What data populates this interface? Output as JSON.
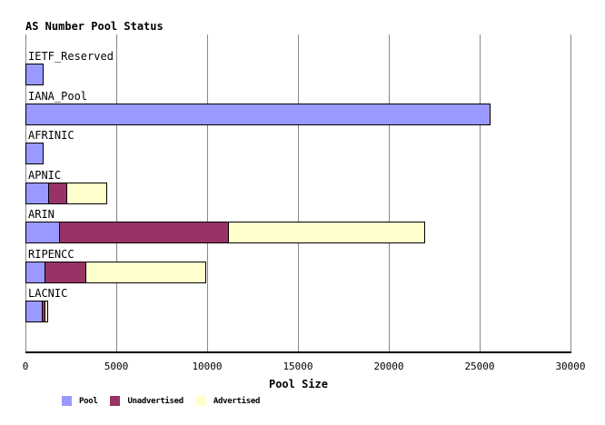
{
  "title": "AS Number Pool Status",
  "colors": {
    "pool": "#9999ff",
    "unadvertised": "#993366",
    "advertised": "#ffffcc",
    "grid": "#888888",
    "axis": "#000000",
    "background": "#ffffff",
    "bar_border": "#000000"
  },
  "chart_data": {
    "type": "bar",
    "orientation": "horizontal",
    "stacked": true,
    "title": "AS Number Pool Status",
    "xlabel": "Pool Size",
    "ylabel": "",
    "xlim": [
      0,
      30000
    ],
    "xticks": [
      0,
      5000,
      10000,
      15000,
      20000,
      25000,
      30000
    ],
    "grid": true,
    "legend_position": "bottom-left",
    "categories": [
      "IETF_Reserved",
      "IANA_Pool",
      "AFRINIC",
      "APNIC",
      "ARIN",
      "RIPENCC",
      "LACNIC"
    ],
    "series": [
      {
        "name": "Pool",
        "color": "#9999ff",
        "values": [
          1020,
          25620,
          1020,
          1300,
          1920,
          1120,
          940
        ]
      },
      {
        "name": "Unadvertised",
        "color": "#993366",
        "values": [
          0,
          0,
          0,
          1040,
          9330,
          2300,
          100
        ]
      },
      {
        "name": "Advertised",
        "color": "#ffffcc",
        "values": [
          0,
          0,
          0,
          2250,
          10850,
          6670,
          210
        ]
      }
    ],
    "totals": [
      1020,
      25620,
      1020,
      4590,
      22100,
      10090,
      1250
    ]
  }
}
